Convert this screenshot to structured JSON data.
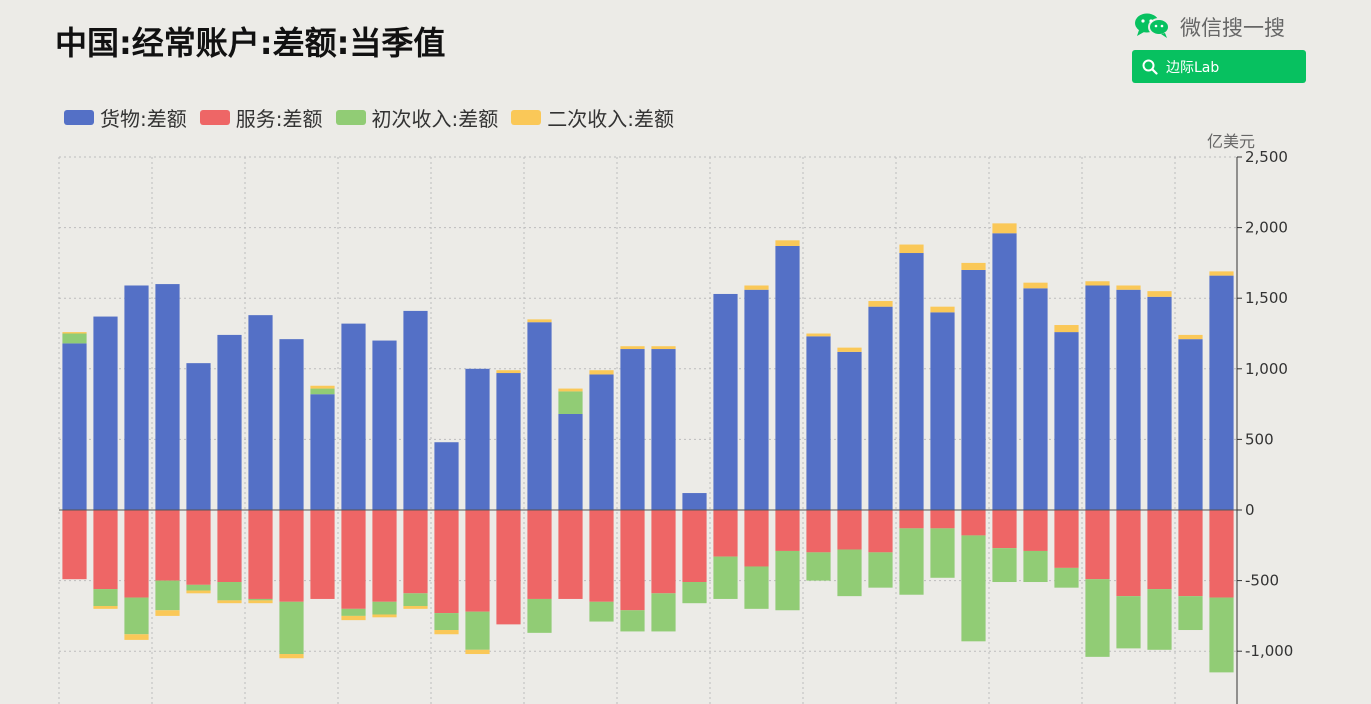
{
  "title": "中国:经常账户:差额:当季值",
  "brand": {
    "text": "微信搜一搜",
    "search_label": "边际Lab",
    "logo_icon": "wechat-logo-icon",
    "search_icon": "search-icon",
    "accent": "#07c160"
  },
  "chart_data": {
    "type": "bar",
    "stacked": true,
    "title": "中国:经常账户:差额:当季值",
    "unit": "亿美元",
    "ylim": [
      -1150,
      2500
    ],
    "yticks": [
      2500,
      2000,
      1500,
      1000,
      500,
      0,
      -500,
      -1000
    ],
    "ytick_labels": [
      "2,500",
      "2,000",
      "1,500",
      "1,000",
      "500",
      "0",
      "-500",
      "-1,000"
    ],
    "grid": true,
    "legend_position": "top-left",
    "series": [
      {
        "name": "货物:差额",
        "color": "#5470c6",
        "values": [
          1180,
          1370,
          1590,
          1600,
          1040,
          1240,
          1380,
          1210,
          820,
          1320,
          1200,
          1410,
          480,
          1000,
          970,
          1330,
          680,
          960,
          1140,
          1140,
          120,
          1530,
          1560,
          1870,
          1230,
          1120,
          1440,
          1820,
          1400,
          1700,
          1960,
          1570,
          1260,
          1590,
          1560,
          1510,
          1210,
          1660
        ]
      },
      {
        "name": "服务:差额",
        "color": "#ee6666",
        "values": [
          -490,
          -560,
          -620,
          -500,
          -530,
          -510,
          -630,
          -650,
          -630,
          -700,
          -650,
          -590,
          -730,
          -720,
          -810,
          -630,
          -630,
          -650,
          -710,
          -590,
          -510,
          -330,
          -400,
          -290,
          -300,
          -280,
          -300,
          -130,
          -130,
          -180,
          -270,
          -290,
          -410,
          -490,
          -610,
          -560,
          -610,
          -620
        ]
      },
      {
        "name": "初次收入:差额",
        "color": "#91cc75",
        "values": [
          70,
          -120,
          -260,
          -210,
          -40,
          -130,
          -10,
          -370,
          40,
          -50,
          -90,
          -90,
          -120,
          -270,
          0,
          -240,
          160,
          -140,
          -150,
          -270,
          -150,
          -300,
          -300,
          -420,
          -200,
          -330,
          -250,
          -470,
          -350,
          -750,
          -240,
          -220,
          -140,
          -550,
          -370,
          -430,
          -240,
          -530
        ]
      },
      {
        "name": "二次收入:差额",
        "color": "#fac858",
        "values": [
          10,
          -20,
          -40,
          -40,
          -20,
          -20,
          -20,
          -30,
          20,
          -30,
          -20,
          -20,
          -30,
          -30,
          20,
          20,
          20,
          30,
          20,
          20,
          0,
          0,
          30,
          40,
          20,
          30,
          40,
          60,
          40,
          50,
          70,
          40,
          50,
          30,
          30,
          40,
          30,
          30
        ]
      }
    ]
  }
}
